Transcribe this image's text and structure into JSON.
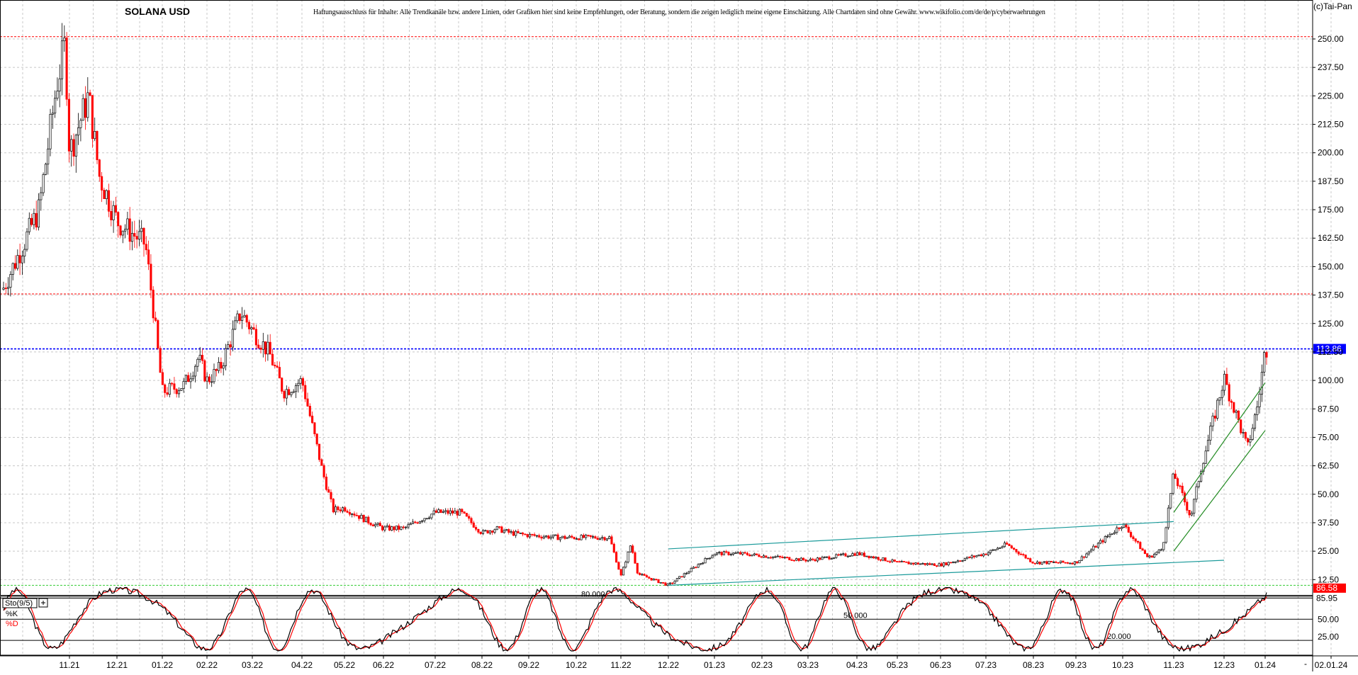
{
  "header": {
    "title": "SOLANA USD",
    "disclaimer": "Haftungsausschluss für Inhalte: Alle Trendkanäle bzw. andere Linien, oder Grafiken hier sind keine Empfehlungen, oder Beratung, sondern die zeigen lediglich meine eigene Einschätzung. Alle Chartdaten sind ohne Gewähr. www.wikifolio.com/de/de/p/cyberwaehrungen",
    "copyright": "(c)Tai-Pan"
  },
  "colors": {
    "up_candle": "#000000",
    "down_candle": "#ff0000",
    "grid": "#c8c8c8",
    "last_price_line": "#0000ff",
    "last_price_label_bg": "#0000ff",
    "resistance_dashed": "#ff0000",
    "support_dashed": "#33cc33",
    "channel_teal": "#1a9a9a",
    "channel_green": "#228b22",
    "k_line": "#000000",
    "d_line": "#ff0000",
    "k_label_bg": "#ff0000"
  },
  "chart_data": [
    {
      "type": "candlestick",
      "title": "SOLANA USD",
      "ylim": [
        0,
        262
      ],
      "y_ticks": [
        "12.50",
        "25.00",
        "37.50",
        "50.00",
        "62.50",
        "75.00",
        "87.50",
        "100.00",
        "112.50",
        "125.00",
        "137.50",
        "150.00",
        "162.50",
        "175.00",
        "187.50",
        "200.00",
        "212.50",
        "225.00",
        "237.50",
        "250.00"
      ],
      "x_ticks": [
        "11.21",
        "12.21",
        "01.22",
        "02.22",
        "03.22",
        "04.22",
        "05.22",
        "06.22",
        "07.22",
        "08.22",
        "09.22",
        "10.22",
        "11.22",
        "12.22",
        "01.23",
        "02.23",
        "03.23",
        "04.23",
        "05.23",
        "06.23",
        "07.23",
        "08.23",
        "09.23",
        "10.23",
        "11.23",
        "12.23",
        "01.24",
        "02.01.24"
      ],
      "grid": true,
      "last_price": {
        "value": 113.86,
        "label": "113.86"
      },
      "horizontal_lines": [
        {
          "value": 251,
          "style": "dashed",
          "color": "red"
        },
        {
          "value": 138,
          "style": "dashed",
          "color": "red"
        },
        {
          "value": 10,
          "style": "dashed",
          "color": "green"
        }
      ],
      "trend_lines": [
        {
          "from": [
            "12.22",
            26
          ],
          "to": [
            "11.23",
            38
          ],
          "color": "teal"
        },
        {
          "from": [
            "12.22",
            10
          ],
          "to": [
            "12.23",
            21
          ],
          "color": "teal"
        },
        {
          "from": [
            "11.23",
            42
          ],
          "to": [
            "01.24",
            99
          ],
          "color": "green"
        },
        {
          "from": [
            "11.23",
            25
          ],
          "to": [
            "01.24",
            78
          ],
          "color": "green"
        }
      ],
      "monthly_closes": [
        {
          "x": "11.21",
          "value": 200
        },
        {
          "x": "12.21",
          "value": 170
        },
        {
          "x": "01.22",
          "value": 95
        },
        {
          "x": "02.22",
          "value": 100
        },
        {
          "x": "03.22",
          "value": 122
        },
        {
          "x": "04.22",
          "value": 100
        },
        {
          "x": "05.22",
          "value": 44
        },
        {
          "x": "06.22",
          "value": 35
        },
        {
          "x": "07.22",
          "value": 42
        },
        {
          "x": "08.22",
          "value": 33
        },
        {
          "x": "09.22",
          "value": 32
        },
        {
          "x": "10.22",
          "value": 31
        },
        {
          "x": "11.22",
          "value": 14
        },
        {
          "x": "12.22",
          "value": 10
        },
        {
          "x": "01.23",
          "value": 24
        },
        {
          "x": "02.23",
          "value": 23
        },
        {
          "x": "03.23",
          "value": 21
        },
        {
          "x": "04.23",
          "value": 24
        },
        {
          "x": "05.23",
          "value": 20
        },
        {
          "x": "06.23",
          "value": 19
        },
        {
          "x": "07.23",
          "value": 24
        },
        {
          "x": "08.23",
          "value": 20
        },
        {
          "x": "09.23",
          "value": 20
        },
        {
          "x": "10.23",
          "value": 37
        },
        {
          "x": "11.23",
          "value": 59
        },
        {
          "x": "12.23",
          "value": 101
        },
        {
          "x": "01.24",
          "value": 113.86
        }
      ]
    },
    {
      "type": "line",
      "indicator_label": "Sto(9/5)",
      "series": [
        {
          "name": "%K",
          "color": "black",
          "last_value": 85.95,
          "last_label": "85.95"
        },
        {
          "name": "%D",
          "color": "red",
          "last_value": 86.58,
          "last_label": "86.58"
        }
      ],
      "ylim": [
        0,
        100
      ],
      "y_ticks": [
        "25.00",
        "50.00"
      ],
      "levels": [
        {
          "value": 80,
          "label": "80.000"
        },
        {
          "value": 50,
          "label": "50.000"
        },
        {
          "value": 20,
          "label": "20.000"
        }
      ],
      "axis_dash_label": "-"
    }
  ]
}
